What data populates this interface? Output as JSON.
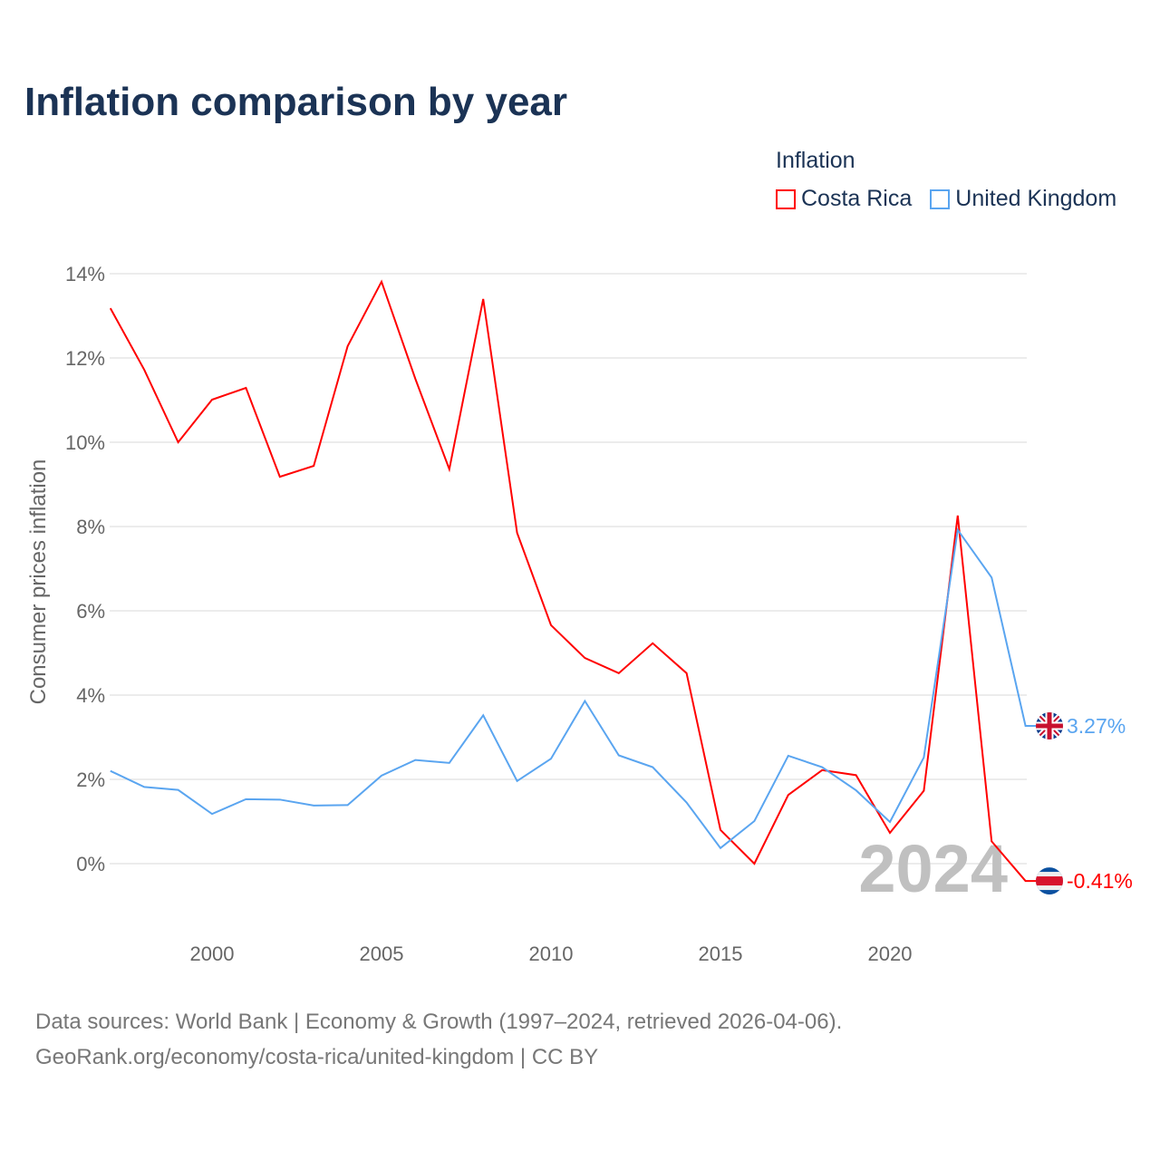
{
  "title": "Inflation comparison by year",
  "legend": {
    "title": "Inflation",
    "items": [
      {
        "label": "Costa Rica",
        "color": "#ff0000"
      },
      {
        "label": "United Kingdom",
        "color": "#5aa5f0"
      }
    ]
  },
  "source": {
    "line1": "Data sources: World Bank | Economy & Growth (1997–2024, retrieved 2026-04-06).",
    "line2": "GeoRank.org/economy/costa-rica/united-kingdom | CC BY"
  },
  "chart_data": {
    "type": "line",
    "title": "Inflation comparison by year",
    "xlabel": "",
    "ylabel": "Consumer prices inflation",
    "year_label": "2024",
    "x": [
      1997,
      1998,
      1999,
      2000,
      2001,
      2002,
      2003,
      2004,
      2005,
      2006,
      2007,
      2008,
      2009,
      2010,
      2011,
      2012,
      2013,
      2014,
      2015,
      2016,
      2017,
      2018,
      2019,
      2020,
      2021,
      2022,
      2023,
      2024
    ],
    "xticks": [
      {
        "value": 2000,
        "label": "2000"
      },
      {
        "value": 2005,
        "label": "2005"
      },
      {
        "value": 2010,
        "label": "2010"
      },
      {
        "value": 2015,
        "label": "2015"
      },
      {
        "value": 2020,
        "label": "2020"
      }
    ],
    "yticks": [
      {
        "value": 0,
        "label": "0%"
      },
      {
        "value": 2,
        "label": "2%"
      },
      {
        "value": 4,
        "label": "4%"
      },
      {
        "value": 6,
        "label": "6%"
      },
      {
        "value": 8,
        "label": "8%"
      },
      {
        "value": 10,
        "label": "10%"
      },
      {
        "value": 12,
        "label": "12%"
      },
      {
        "value": 14,
        "label": "14%"
      }
    ],
    "xlim": [
      1997,
      2024
    ],
    "ylim": [
      -1,
      14.5
    ],
    "grid": true,
    "legend_position": "top-right",
    "series": [
      {
        "name": "Costa Rica",
        "color": "#ff0000",
        "end_label": "-0.41%",
        "values": [
          13.18,
          11.72,
          10.0,
          11.01,
          11.29,
          9.18,
          9.44,
          12.28,
          13.81,
          11.5,
          9.36,
          13.4,
          7.85,
          5.66,
          4.88,
          4.52,
          5.23,
          4.52,
          0.8,
          0.0,
          1.63,
          2.22,
          2.1,
          0.73,
          1.73,
          8.26,
          0.53,
          -0.41
        ]
      },
      {
        "name": "United Kingdom",
        "color": "#5aa5f0",
        "end_label": "3.27%",
        "values": [
          2.2,
          1.82,
          1.75,
          1.18,
          1.53,
          1.52,
          1.38,
          1.39,
          2.09,
          2.46,
          2.39,
          3.52,
          1.96,
          2.49,
          3.86,
          2.57,
          2.29,
          1.45,
          0.37,
          1.01,
          2.56,
          2.29,
          1.74,
          0.99,
          2.52,
          7.92,
          6.79,
          3.27
        ]
      }
    ]
  }
}
